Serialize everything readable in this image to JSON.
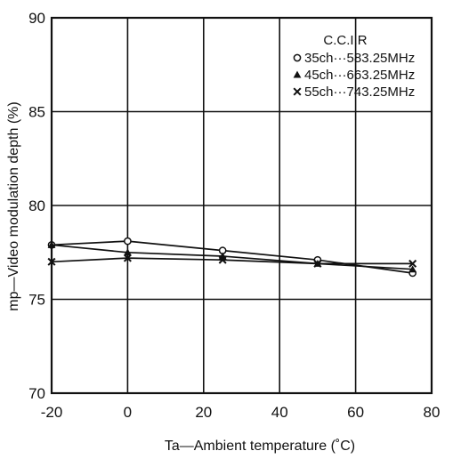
{
  "chart_data": {
    "type": "line",
    "xlabel": "Ta—Ambient temperature (˚C)",
    "ylabel": "mp—Video modulation depth (%)",
    "xlim": [
      -20,
      80
    ],
    "ylim": [
      70,
      90
    ],
    "xticks": [
      -20,
      0,
      20,
      40,
      60,
      80
    ],
    "yticks": [
      70,
      75,
      80,
      85,
      90
    ],
    "x_tick_labels": [
      "-20",
      "0",
      "20",
      "40",
      "60",
      "80"
    ],
    "y_tick_labels": [
      "70",
      "75",
      "80",
      "85",
      "90"
    ],
    "grid": true,
    "legend_position": "top-right",
    "legend_title": "C.C.I.R",
    "series": [
      {
        "name": "35ch···583.25MHz",
        "marker": "circle",
        "points": [
          [
            -20,
            77.9
          ],
          [
            0,
            78.1
          ],
          [
            25,
            77.6
          ],
          [
            50,
            77.1
          ],
          [
            75,
            76.4
          ]
        ]
      },
      {
        "name": "45ch···663.25MHz",
        "marker": "triangle",
        "points": [
          [
            -20,
            77.9
          ],
          [
            0,
            77.5
          ],
          [
            25,
            77.3
          ],
          [
            50,
            76.9
          ],
          [
            75,
            76.6
          ]
        ]
      },
      {
        "name": "55ch···743.25MHz",
        "marker": "x",
        "points": [
          [
            -20,
            77.0
          ],
          [
            0,
            77.2
          ],
          [
            25,
            77.1
          ],
          [
            50,
            76.9
          ],
          [
            75,
            76.9
          ]
        ]
      }
    ]
  }
}
